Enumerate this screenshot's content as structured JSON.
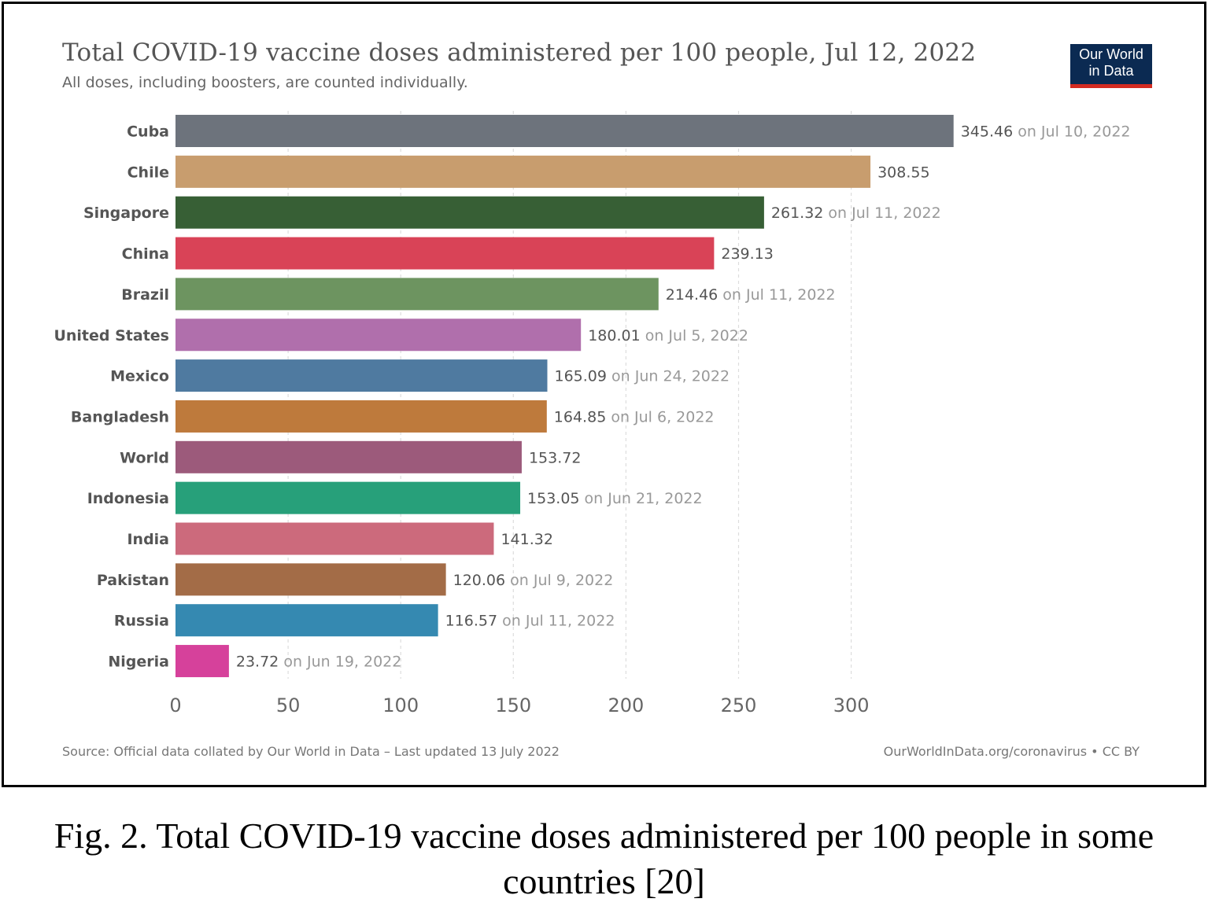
{
  "title": "Total COVID-19 vaccine doses administered per 100 people, Jul 12, 2022",
  "subtitle": "All doses, including boosters, are counted individually.",
  "logo": {
    "line1": "Our World",
    "line2": "in Data",
    "bg": "#0b2a52",
    "accent": "#d42b21"
  },
  "source": "Source: Official data collated by Our World in Data – Last updated 13 July 2022",
  "license": "OurWorldInData.org/coronavirus • CC BY",
  "caption": "Fig. 2. Total COVID-19 vaccine doses administered per 100 people in some countries [20]",
  "chart_data": {
    "type": "bar",
    "orientation": "horizontal",
    "title": "Total COVID-19 vaccine doses administered per 100 people, Jul 12, 2022",
    "subtitle": "All doses, including boosters, are counted individually.",
    "xlim": [
      0,
      345.46
    ],
    "xticks": [
      0,
      50,
      100,
      150,
      200,
      250,
      300
    ],
    "grid": "vertical-dashed",
    "categories": [
      "Cuba",
      "Chile",
      "Singapore",
      "China",
      "Brazil",
      "United States",
      "Mexico",
      "Bangladesh",
      "World",
      "Indonesia",
      "India",
      "Pakistan",
      "Russia",
      "Nigeria"
    ],
    "values": [
      345.46,
      308.55,
      261.32,
      239.13,
      214.46,
      180.01,
      165.09,
      164.85,
      153.72,
      153.05,
      141.32,
      120.06,
      116.57,
      23.72
    ],
    "value_labels": [
      "345.46",
      "308.55",
      "261.32",
      "239.13",
      "214.46",
      "180.01",
      "165.09",
      "164.85",
      "153.72",
      "153.05",
      "141.32",
      "120.06",
      "116.57",
      "23.72"
    ],
    "dates": [
      "on Jul 10, 2022",
      "",
      "on Jul 11, 2022",
      "",
      "on Jul 11, 2022",
      "on Jul 5, 2022",
      "on Jun 24, 2022",
      "on Jul 6, 2022",
      "",
      "on Jun 21, 2022",
      "",
      "on Jul 9, 2022",
      "on Jul 11, 2022",
      "on Jun 19, 2022"
    ],
    "colors": [
      "#6d737c",
      "#c89d6e",
      "#375f35",
      "#d94357",
      "#6d9460",
      "#b06fac",
      "#4f7aa0",
      "#be7a3c",
      "#9c5a7b",
      "#27a07a",
      "#cc6a7c",
      "#a36c47",
      "#3589b1",
      "#d6419b"
    ]
  }
}
